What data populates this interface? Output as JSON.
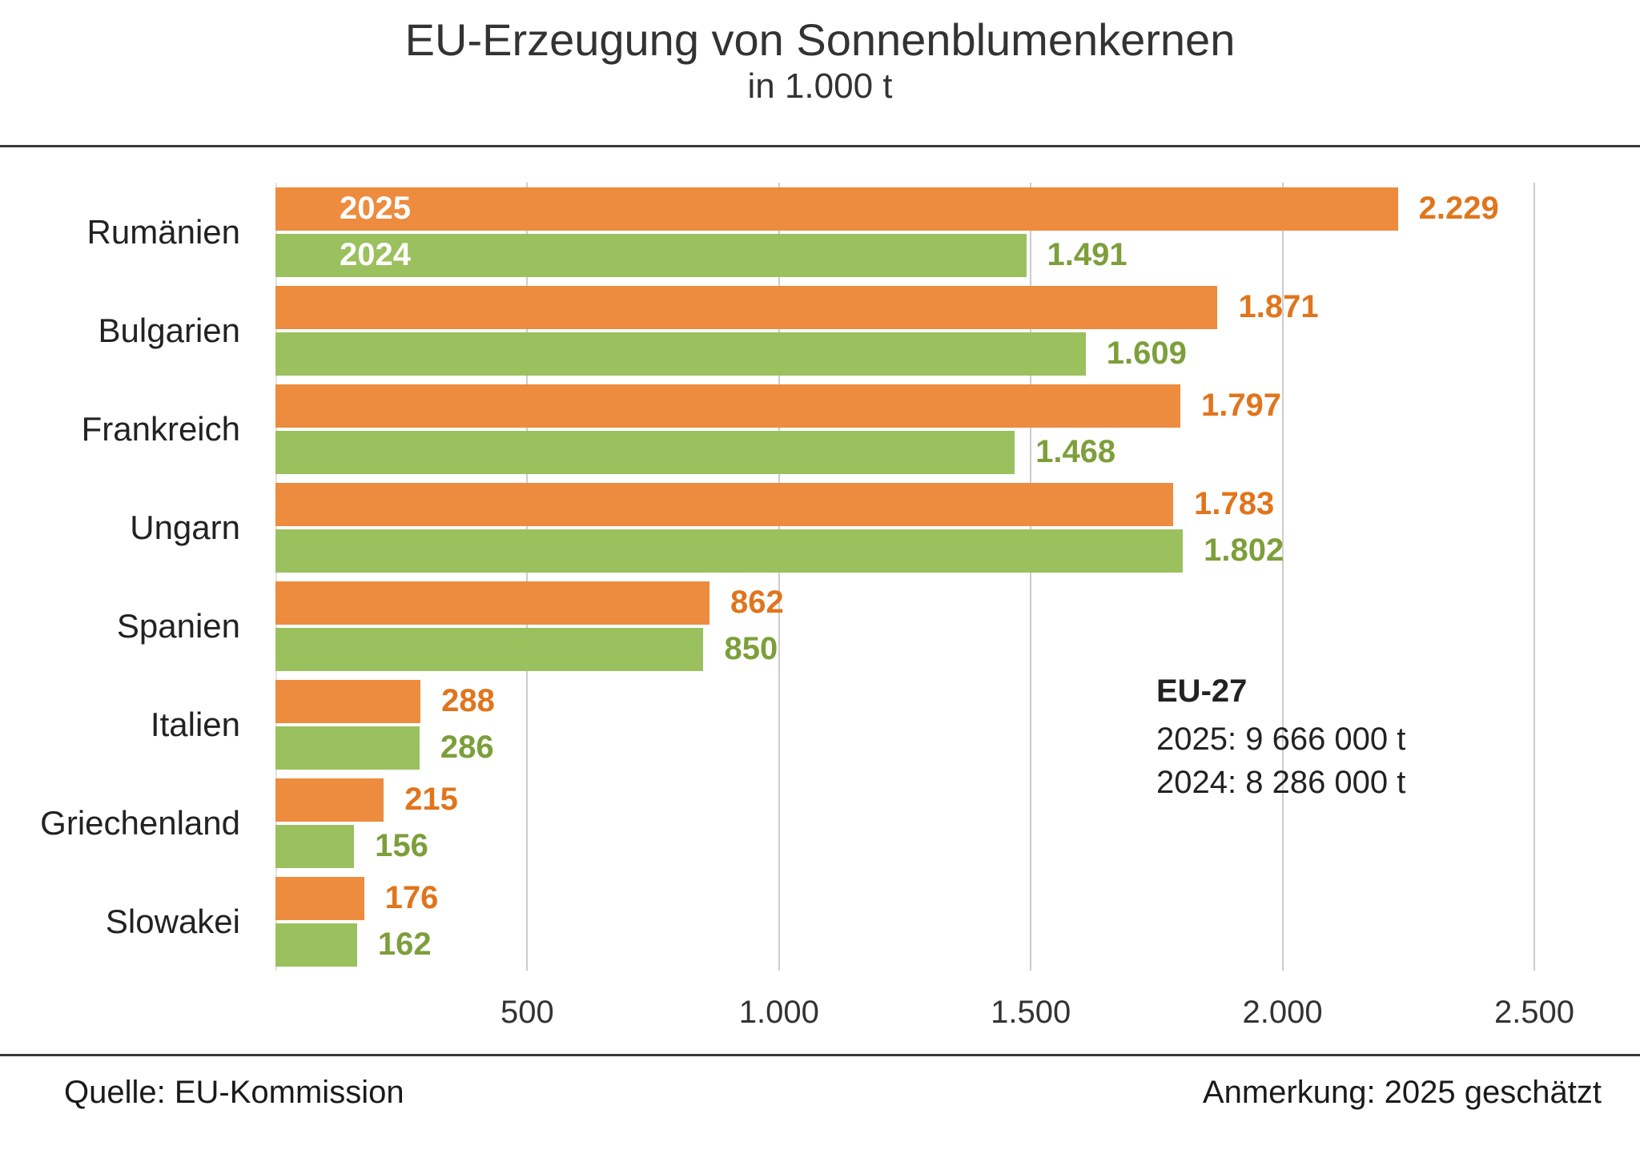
{
  "header": {
    "title": "EU-Erzeugung von Sonnenblumenkernen",
    "subtitle": "in 1.000 t"
  },
  "chart_data": {
    "type": "bar",
    "orientation": "horizontal",
    "title": "EU-Erzeugung von Sonnenblumenkernen",
    "subtitle": "in 1.000 t",
    "categories": [
      "Rumänien",
      "Bulgarien",
      "Frankreich",
      "Ungarn",
      "Spanien",
      "Italien",
      "Griechenland",
      "Slowakei"
    ],
    "series": [
      {
        "name": "2025",
        "color": "#ED8B3E",
        "label_color": "#E0751C",
        "values": [
          2229,
          1871,
          1797,
          1783,
          862,
          288,
          215,
          176
        ],
        "labels": [
          "2.229",
          "1.871",
          "1.797",
          "1.783",
          "862",
          "288",
          "215",
          "176"
        ]
      },
      {
        "name": "2024",
        "color": "#9BC05E",
        "label_color": "#7D9F3B",
        "values": [
          1491,
          1609,
          1468,
          1802,
          850,
          286,
          156,
          162
        ],
        "labels": [
          "1.491",
          "1.609",
          "1.468",
          "1.802",
          "850",
          "286",
          "156",
          "162"
        ]
      }
    ],
    "xlim": [
      0,
      2500
    ],
    "x_tick_values": [
      500,
      1000,
      1500,
      2000,
      2500
    ],
    "x_ticks": [
      "500",
      "1.000",
      "1.500",
      "2.000",
      "2.500"
    ],
    "grid": "vertical",
    "legend_position": "inside-first-bars",
    "annotation": {
      "title": "EU-27",
      "lines": [
        "2025: 9 666 000 t",
        "2024: 8 286 000 t"
      ]
    }
  },
  "footer": {
    "source": "Quelle:  EU-Kommission",
    "note": "Anmerkung: 2025 geschätzt"
  }
}
